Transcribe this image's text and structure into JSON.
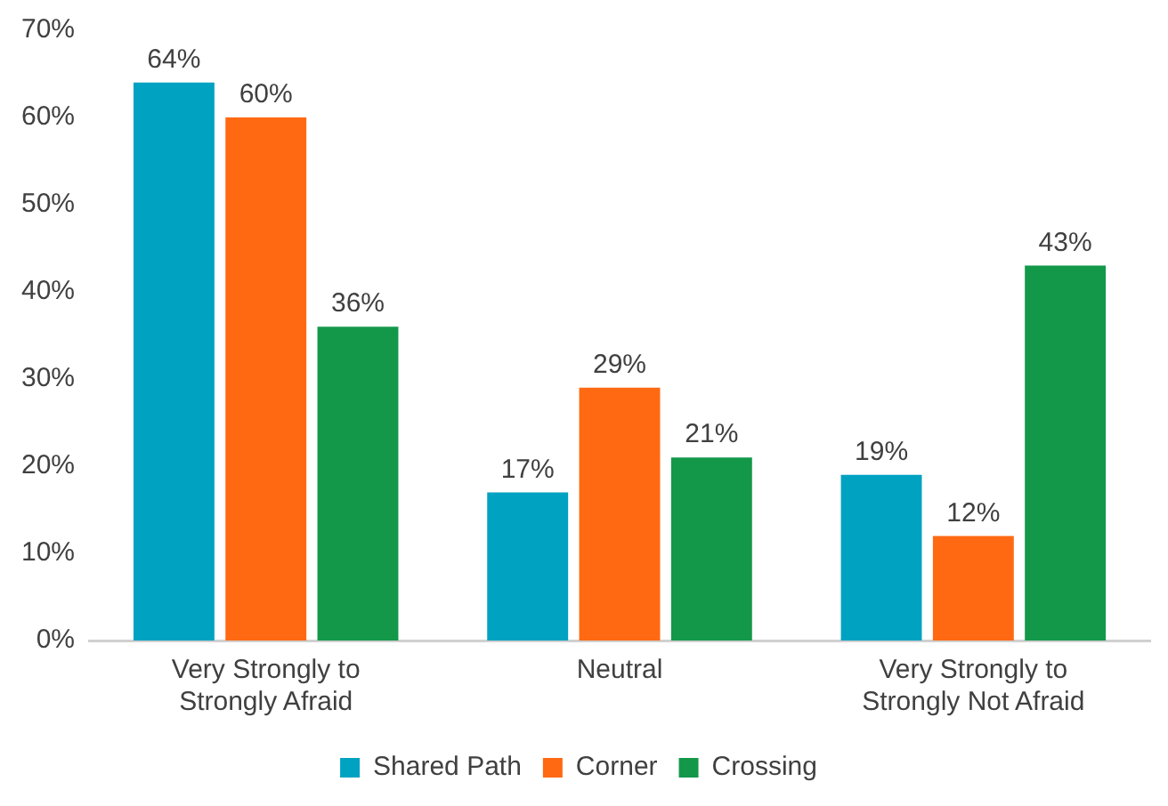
{
  "chart_data": {
    "type": "bar",
    "categories": [
      "Very Strongly to Strongly Afraid",
      "Neutral",
      "Very Strongly to Strongly Not Afraid"
    ],
    "series": [
      {
        "name": "Shared Path",
        "color": "#00a2c2",
        "values": [
          64,
          17,
          19
        ],
        "value_labels": [
          "64%",
          "17%",
          "19%"
        ]
      },
      {
        "name": "Corner",
        "color": "#ff6912",
        "values": [
          60,
          29,
          12
        ],
        "value_labels": [
          "60%",
          "29%",
          "12%"
        ]
      },
      {
        "name": "Crossing",
        "color": "#13984a",
        "values": [
          36,
          21,
          43
        ],
        "value_labels": [
          "36%",
          "21%",
          "43%"
        ]
      }
    ],
    "ylim": [
      0,
      70
    ],
    "yticks": [
      {
        "value": 0,
        "label": "0%"
      },
      {
        "value": 10,
        "label": "10%"
      },
      {
        "value": 20,
        "label": "20%"
      },
      {
        "value": 30,
        "label": "30%"
      },
      {
        "value": 40,
        "label": "40%"
      },
      {
        "value": 50,
        "label": "50%"
      },
      {
        "value": 60,
        "label": "60%"
      },
      {
        "value": 70,
        "label": "70%"
      }
    ],
    "grid": false,
    "legend": "bottom"
  }
}
